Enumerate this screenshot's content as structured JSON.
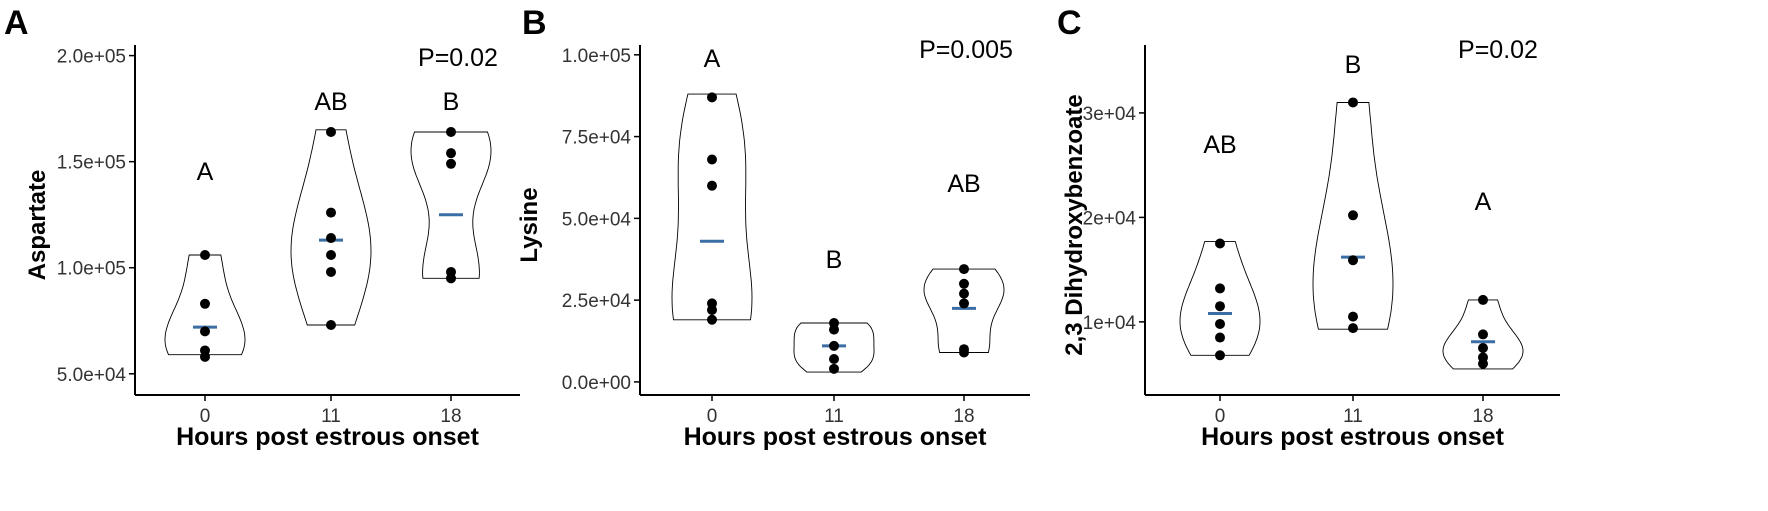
{
  "figure": {
    "colors": {
      "median": "#3a6ea5",
      "point": "#000000",
      "violin": "#000000",
      "axis": "#000000"
    }
  },
  "chart_data": [
    {
      "panel": "A",
      "type": "violin",
      "xlabel": "Hours post estrous onset",
      "ylabel": "Aspartate",
      "categories": [
        "0",
        "11",
        "18"
      ],
      "ylim": [
        40000,
        205000
      ],
      "yticks": [
        50000,
        100000,
        150000,
        200000
      ],
      "ytick_labels": [
        "5.0e+04",
        "1.0e+05",
        "1.5e+05",
        "2.0e+05"
      ],
      "groups": [
        {
          "name": "0",
          "points": [
            106000,
            83000,
            70000,
            61000,
            58000
          ],
          "median": 72000,
          "letter": "A",
          "violin_range": [
            59000,
            106000
          ]
        },
        {
          "name": "11",
          "points": [
            164000,
            126000,
            114000,
            106000,
            98000,
            73000
          ],
          "median": 113000,
          "letter": "AB",
          "violin_range": [
            73000,
            165000
          ]
        },
        {
          "name": "18",
          "points": [
            164000,
            154000,
            149000,
            98000,
            95000
          ],
          "median": 125000,
          "letter": "B",
          "violin_range": [
            95000,
            164000
          ]
        }
      ],
      "annotation": "P=0.02"
    },
    {
      "panel": "B",
      "type": "violin",
      "xlabel": "Hours post estrous onset",
      "ylabel": "Lysine",
      "categories": [
        "0",
        "11",
        "18"
      ],
      "ylim": [
        -4000,
        103000
      ],
      "yticks": [
        0,
        25000,
        50000,
        75000,
        100000
      ],
      "ytick_labels": [
        "0.0e+00",
        "2.5e+04",
        "5.0e+04",
        "7.5e+04",
        "1.0e+05"
      ],
      "groups": [
        {
          "name": "0",
          "points": [
            87000,
            68000,
            60000,
            24000,
            22000,
            19000
          ],
          "median": 43000,
          "letter": "A",
          "violin_range": [
            19000,
            88000
          ]
        },
        {
          "name": "11",
          "points": [
            18000,
            16000,
            11000,
            7000,
            4000
          ],
          "median": 11000,
          "letter": "B",
          "violin_range": [
            3000,
            18000
          ]
        },
        {
          "name": "18",
          "points": [
            34500,
            30000,
            27000,
            24000,
            10000,
            9000
          ],
          "median": 22500,
          "letter": "AB",
          "violin_range": [
            9000,
            34500
          ]
        }
      ],
      "annotation": "P=0.005"
    },
    {
      "panel": "C",
      "type": "violin",
      "xlabel": "Hours post estrous onset",
      "ylabel": "2,3 Dihydroxybenzoate",
      "categories": [
        "0",
        "11",
        "18"
      ],
      "ylim": [
        3000,
        36500
      ],
      "yticks": [
        10000,
        20000,
        30000
      ],
      "ytick_labels": [
        "1e+04",
        "2e+04",
        "3e+04"
      ],
      "groups": [
        {
          "name": "0",
          "points": [
            17500,
            13200,
            11500,
            9800,
            8500,
            6800
          ],
          "median": 10800,
          "letter": "AB",
          "violin_range": [
            6800,
            17700
          ]
        },
        {
          "name": "11",
          "points": [
            31000,
            20200,
            15900,
            10500,
            9400
          ],
          "median": 16200,
          "letter": "B",
          "violin_range": [
            9300,
            31000
          ]
        },
        {
          "name": "18",
          "points": [
            12100,
            8800,
            7500,
            6600,
            6000
          ],
          "median": 8100,
          "letter": "A",
          "violin_range": [
            5500,
            12100
          ]
        }
      ],
      "annotation": "P=0.02"
    }
  ]
}
